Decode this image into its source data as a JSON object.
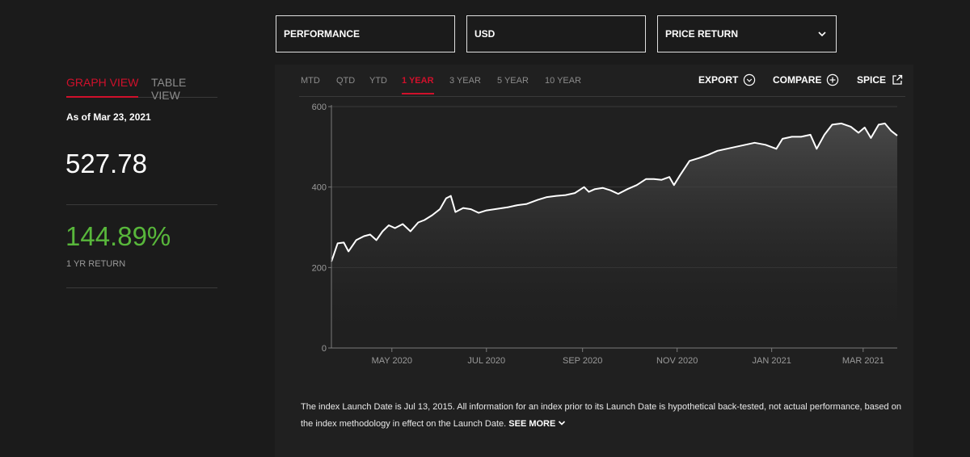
{
  "selectors": {
    "metric": "PERFORMANCE",
    "currency": "USD",
    "return_type": "PRICE RETURN"
  },
  "view_tabs": {
    "graph": "GRAPH VIEW",
    "table": "TABLE VIEW"
  },
  "summary": {
    "as_of": "As of Mar 23, 2021",
    "index_value": "527.78",
    "return_value": "144.89%",
    "return_label": "1 YR RETURN"
  },
  "range_tabs": [
    "MTD",
    "QTD",
    "YTD",
    "1 YEAR",
    "3 YEAR",
    "5 YEAR",
    "10 YEAR"
  ],
  "active_range": "1 YEAR",
  "actions": {
    "export": "EXPORT",
    "compare": "COMPARE",
    "spice": "SPICE"
  },
  "icons": {
    "export": "chevron-circle-icon",
    "compare": "plus-circle-icon",
    "spice": "external-link-icon",
    "dropdown": "chevron-down-icon"
  },
  "colors": {
    "accent": "#d0102b",
    "positive": "#58b73b",
    "line": "#ffffff"
  },
  "footnote": {
    "text": "The index Launch Date is Jul 13, 2015.  All information for an index prior to its Launch Date is hypothetical back-tested, not actual performance, based on the index methodology in effect on the Launch Date.",
    "see_more": "SEE MORE"
  },
  "chart_data": {
    "type": "area",
    "title": "",
    "xlabel": "",
    "ylabel": "",
    "ylim": [
      0,
      600
    ],
    "yticks": [
      0,
      200,
      400,
      600
    ],
    "xlim": [
      "2020-03-23",
      "2021-03-23"
    ],
    "xtick_labels": [
      {
        "date": "2020-05-01",
        "label": "MAY 2020"
      },
      {
        "date": "2020-07-01",
        "label": "JUL 2020"
      },
      {
        "date": "2020-09-01",
        "label": "SEP 2020"
      },
      {
        "date": "2020-11-01",
        "label": "NOV 2020"
      },
      {
        "date": "2021-01-01",
        "label": "JAN 2021"
      },
      {
        "date": "2021-03-01",
        "label": "MAR 2021"
      }
    ],
    "grid": "horizontal",
    "series": [
      {
        "name": "",
        "points": [
          [
            "2020-03-23",
            215
          ],
          [
            "2020-03-27",
            260
          ],
          [
            "2020-03-31",
            262
          ],
          [
            "2020-04-03",
            240
          ],
          [
            "2020-04-08",
            268
          ],
          [
            "2020-04-13",
            278
          ],
          [
            "2020-04-17",
            282
          ],
          [
            "2020-04-21",
            268
          ],
          [
            "2020-04-25",
            290
          ],
          [
            "2020-04-29",
            305
          ],
          [
            "2020-05-03",
            298
          ],
          [
            "2020-05-08",
            308
          ],
          [
            "2020-05-13",
            290
          ],
          [
            "2020-05-18",
            312
          ],
          [
            "2020-05-22",
            318
          ],
          [
            "2020-05-27",
            330
          ],
          [
            "2020-06-01",
            345
          ],
          [
            "2020-06-05",
            372
          ],
          [
            "2020-06-08",
            378
          ],
          [
            "2020-06-11",
            338
          ],
          [
            "2020-06-16",
            348
          ],
          [
            "2020-06-21",
            345
          ],
          [
            "2020-06-26",
            336
          ],
          [
            "2020-07-01",
            342
          ],
          [
            "2020-07-08",
            346
          ],
          [
            "2020-07-15",
            350
          ],
          [
            "2020-07-21",
            355
          ],
          [
            "2020-07-27",
            358
          ],
          [
            "2020-08-03",
            368
          ],
          [
            "2020-08-09",
            375
          ],
          [
            "2020-08-15",
            378
          ],
          [
            "2020-08-21",
            380
          ],
          [
            "2020-08-27",
            385
          ],
          [
            "2020-09-02",
            400
          ],
          [
            "2020-09-05",
            388
          ],
          [
            "2020-09-09",
            395
          ],
          [
            "2020-09-14",
            398
          ],
          [
            "2020-09-19",
            392
          ],
          [
            "2020-09-24",
            383
          ],
          [
            "2020-09-30",
            395
          ],
          [
            "2020-10-06",
            405
          ],
          [
            "2020-10-12",
            420
          ],
          [
            "2020-10-17",
            420
          ],
          [
            "2020-10-22",
            418
          ],
          [
            "2020-10-27",
            425
          ],
          [
            "2020-10-30",
            405
          ],
          [
            "2020-11-03",
            430
          ],
          [
            "2020-11-09",
            465
          ],
          [
            "2020-11-15",
            472
          ],
          [
            "2020-11-21",
            480
          ],
          [
            "2020-11-27",
            490
          ],
          [
            "2020-12-03",
            495
          ],
          [
            "2020-12-09",
            500
          ],
          [
            "2020-12-15",
            505
          ],
          [
            "2020-12-21",
            510
          ],
          [
            "2020-12-28",
            505
          ],
          [
            "2021-01-04",
            495
          ],
          [
            "2021-01-08",
            520
          ],
          [
            "2021-01-14",
            525
          ],
          [
            "2021-01-20",
            525
          ],
          [
            "2021-01-26",
            530
          ],
          [
            "2021-01-30",
            495
          ],
          [
            "2021-02-04",
            530
          ],
          [
            "2021-02-09",
            555
          ],
          [
            "2021-02-15",
            558
          ],
          [
            "2021-02-21",
            550
          ],
          [
            "2021-02-26",
            535
          ],
          [
            "2021-03-02",
            548
          ],
          [
            "2021-03-06",
            522
          ],
          [
            "2021-03-11",
            555
          ],
          [
            "2021-03-15",
            558
          ],
          [
            "2021-03-19",
            540
          ],
          [
            "2021-03-23",
            528
          ]
        ]
      }
    ]
  }
}
